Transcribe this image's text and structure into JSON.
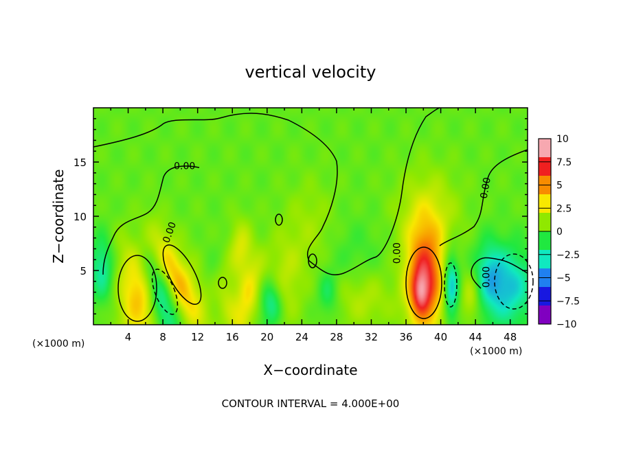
{
  "chart_data": {
    "type": "heatmap",
    "title": "vertical velocity",
    "xlabel": "X−coordinate",
    "ylabel": "Z−coordinate",
    "x_unit_left": "(×1000 m)",
    "x_unit_right": "(×1000 m)",
    "footer": "CONTOUR INTERVAL = 4.000E+00",
    "xlim": [
      0,
      50
    ],
    "ylim": [
      0,
      20
    ],
    "x_ticks": [
      4,
      8,
      12,
      16,
      20,
      24,
      28,
      32,
      36,
      40,
      44,
      48
    ],
    "x_tick_labels": [
      "4",
      "8",
      "12",
      "16",
      "20",
      "24",
      "28",
      "32",
      "36",
      "40",
      "44",
      "48"
    ],
    "y_ticks": [
      5,
      10,
      15
    ],
    "y_tick_labels": [
      "5",
      "10",
      "15"
    ],
    "colorbar": {
      "range": [
        -10,
        10
      ],
      "tick_values": [
        10,
        7.5,
        5,
        2.5,
        0,
        -2.5,
        -5,
        -7.5,
        -10
      ],
      "tick_labels": [
        "10",
        "7.5",
        "5",
        "2.5",
        "0",
        "−2.5",
        "−5",
        "−7.5",
        "−10"
      ],
      "colors": [
        "#f7a8b0",
        "#f02020",
        "#f88c00",
        "#f8e800",
        "#90e800",
        "#20e840",
        "#10e8c0",
        "#2080f0",
        "#1818e0",
        "#8000c0"
      ]
    },
    "contour_labels": [
      {
        "text": "0.00",
        "x": 10.5,
        "y": 14.6,
        "angle": 0
      },
      {
        "text": "0.00",
        "x": 8.8,
        "y": 8.5,
        "angle": -70
      },
      {
        "text": "0.00",
        "x": 35.0,
        "y": 6.6,
        "angle": -90
      },
      {
        "text": "0.00",
        "x": 45.2,
        "y": 12.6,
        "angle": -80
      },
      {
        "text": "0.00",
        "x": 45.3,
        "y": 4.4,
        "angle": -90
      }
    ],
    "features": [
      {
        "x": 5.2,
        "z": 2.6,
        "w": 4.0,
        "rx": 1.7,
        "rz": 3.0,
        "tilt": 0
      },
      {
        "x": 9.8,
        "z": 3.8,
        "w": 3.6,
        "rx": 1.0,
        "rz": 3.2,
        "tilt": 0.45
      },
      {
        "x": 7.6,
        "z": 2.6,
        "w": -3.8,
        "rx": 1.0,
        "rz": 3.0,
        "tilt": 0.4
      },
      {
        "x": 12.0,
        "z": 3.0,
        "w": 1.5,
        "rx": 1.2,
        "rz": 3.0,
        "tilt": 0.4
      },
      {
        "x": 1.0,
        "z": 5.3,
        "w": -3.4,
        "rx": 1.0,
        "rz": 2.2,
        "tilt": 0
      },
      {
        "x": 15.2,
        "z": 3.0,
        "w": 1.8,
        "rx": 1.0,
        "rz": 3.0,
        "tilt": 0.3
      },
      {
        "x": 17.8,
        "z": 2.3,
        "w": 3.0,
        "rx": 0.9,
        "rz": 2.5,
        "tilt": -0.3
      },
      {
        "x": 17.0,
        "z": 6.8,
        "w": 2.6,
        "rx": 1.0,
        "rz": 2.0,
        "tilt": 0
      },
      {
        "x": 20.5,
        "z": 2.0,
        "w": -3.2,
        "rx": 0.9,
        "rz": 1.6,
        "tilt": 0
      },
      {
        "x": 14.0,
        "z": 5.5,
        "w": -1.2,
        "rx": 1.0,
        "rz": 2.0,
        "tilt": 0
      },
      {
        "x": 22.0,
        "z": 4.0,
        "w": 1.8,
        "rx": 1.5,
        "rz": 3.0,
        "tilt": 0
      },
      {
        "x": 27.0,
        "z": 2.8,
        "w": -2.0,
        "rx": 0.8,
        "rz": 1.5,
        "tilt": 0
      },
      {
        "x": 31.0,
        "z": 2.5,
        "w": 1.8,
        "rx": 2.5,
        "rz": 2.0,
        "tilt": 0
      },
      {
        "x": 25.0,
        "z": 9.0,
        "w": 1.2,
        "rx": 2.0,
        "rz": 3.0,
        "tilt": 0
      },
      {
        "x": 38.2,
        "z": 4.0,
        "w": 7.5,
        "rx": 1.5,
        "rz": 3.3,
        "tilt": 0
      },
      {
        "x": 37.6,
        "z": 3.0,
        "w": 3.0,
        "rx": 0.7,
        "rz": 1.4,
        "tilt": 0
      },
      {
        "x": 38.5,
        "z": 10.0,
        "w": 2.2,
        "rx": 2.5,
        "rz": 3.0,
        "tilt": 0
      },
      {
        "x": 41.2,
        "z": 3.6,
        "w": -4.8,
        "rx": 0.6,
        "rz": 2.2,
        "tilt": 0
      },
      {
        "x": 43.5,
        "z": 2.5,
        "w": 2.5,
        "rx": 0.8,
        "rz": 1.6,
        "tilt": 0
      },
      {
        "x": 47.5,
        "z": 3.5,
        "w": -4.5,
        "rx": 2.2,
        "rz": 2.5,
        "tilt": 0
      },
      {
        "x": 45.5,
        "z": 5.0,
        "w": -2.0,
        "rx": 1.0,
        "rz": 2.0,
        "tilt": 0
      },
      {
        "x": 30.0,
        "z": 6.0,
        "w": -0.9,
        "rx": 2.5,
        "rz": 2.5,
        "tilt": 0
      },
      {
        "x": 4.0,
        "z": 7.0,
        "w": 0.8,
        "rx": 3.0,
        "rz": 2.0,
        "tilt": 0
      }
    ]
  }
}
